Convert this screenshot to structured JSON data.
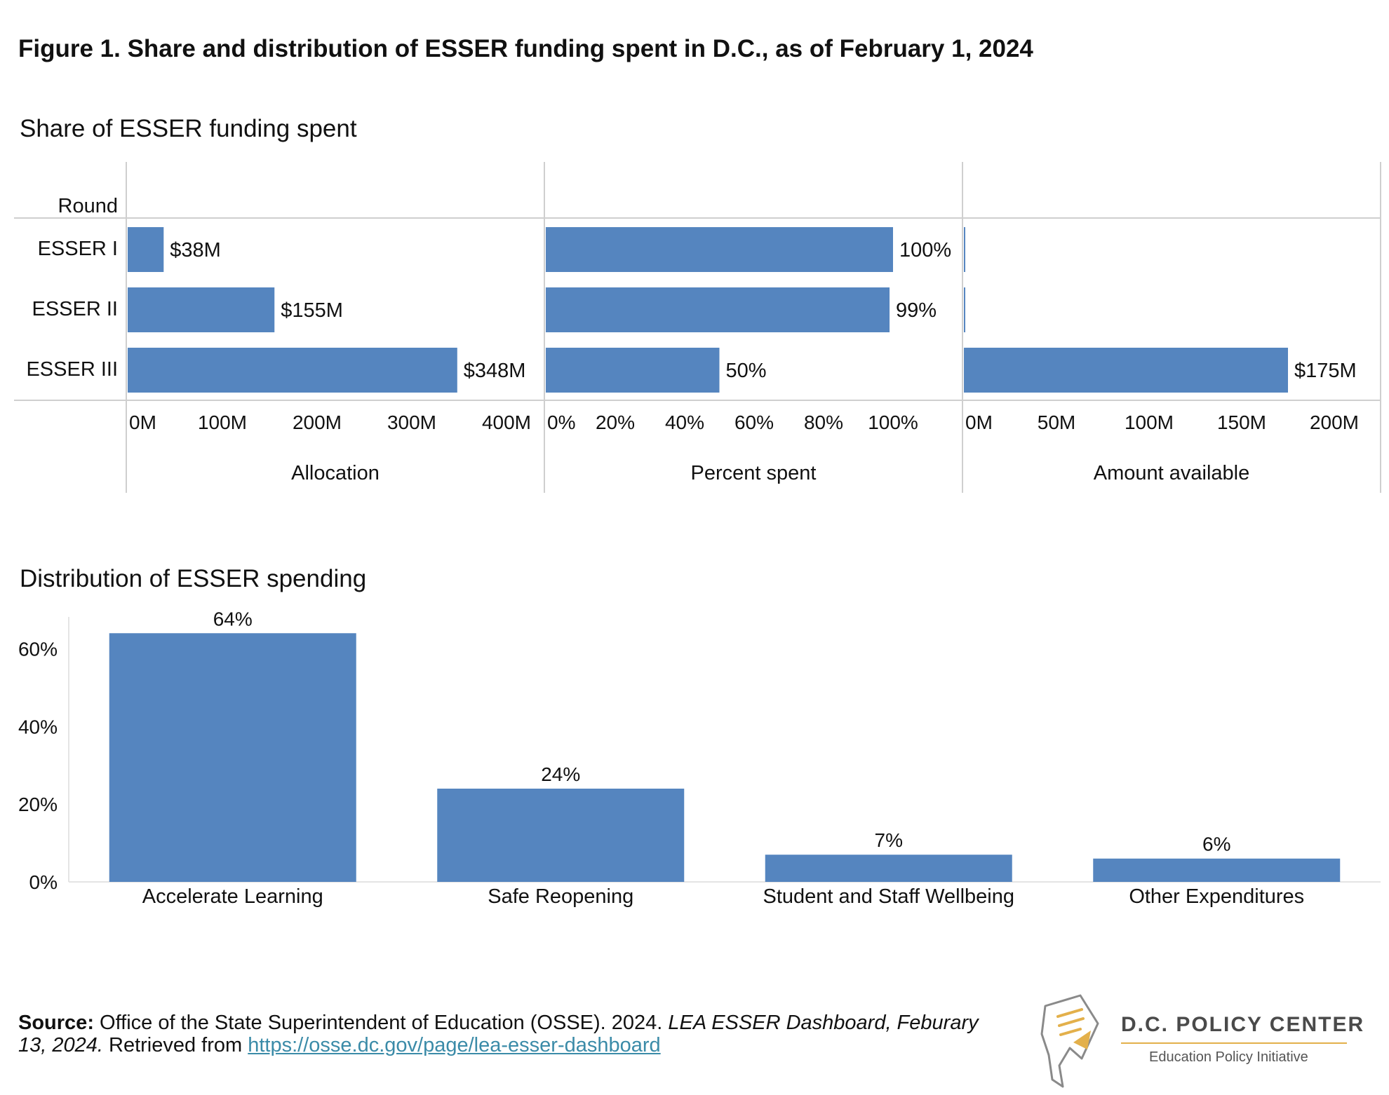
{
  "title": "Figure 1. Share and distribution of ESSER funding spent in D.C., as of February 1, 2024",
  "section1_title": "Share of ESSER funding spent",
  "section2_title": "Distribution of ESSER spending",
  "colors": {
    "bar": "#5585bf",
    "axis": "#cfcfcf",
    "text": "#111111",
    "link": "#3b8ba8",
    "logo_accent": "#e3b04b"
  },
  "chart_data": [
    {
      "type": "bar",
      "orientation": "horizontal",
      "row_header": "Round",
      "categories": [
        "ESSER I",
        "ESSER II",
        "ESSER III"
      ],
      "panels": [
        {
          "name": "Allocation",
          "values": [
            38,
            155,
            348
          ],
          "labels": [
            "$38M",
            "$155M",
            "$348M"
          ],
          "xlim": [
            0,
            440
          ],
          "ticks": [
            0,
            100,
            200,
            300,
            400
          ],
          "tick_labels": [
            "0M",
            "100M",
            "200M",
            "300M",
            "400M"
          ]
        },
        {
          "name": "Percent spent",
          "values": [
            100,
            99,
            50
          ],
          "labels": [
            "100%",
            "99%",
            "50%"
          ],
          "xlim": [
            0,
            120
          ],
          "ticks": [
            0,
            20,
            40,
            60,
            80,
            100
          ],
          "tick_labels": [
            "0%",
            "20%",
            "40%",
            "60%",
            "80%",
            "100%"
          ]
        },
        {
          "name": "Amount available",
          "values": [
            0.2,
            0.2,
            175
          ],
          "labels": [
            "",
            "",
            "$175M"
          ],
          "xlim": [
            0,
            225
          ],
          "ticks": [
            0,
            50,
            100,
            150,
            200
          ],
          "tick_labels": [
            "0M",
            "50M",
            "100M",
            "150M",
            "200M"
          ]
        }
      ]
    },
    {
      "type": "bar",
      "categories": [
        "Accelerate Learning",
        "Safe Reopening",
        "Student and Staff Wellbeing",
        "Other Expenditures"
      ],
      "values": [
        64,
        24,
        7,
        6
      ],
      "labels": [
        "64%",
        "24%",
        "7%",
        "6%"
      ],
      "ylim": [
        0,
        70
      ],
      "yticks": [
        0,
        20,
        40,
        60
      ],
      "ytick_labels": [
        "0%",
        "20%",
        "40%",
        "60%"
      ]
    }
  ],
  "source": {
    "label": "Source:",
    "text": " Office of the State Superintendent of Education (OSSE). 2024. ",
    "italic": "LEA ESSER Dashboard, Feburary 13, 2024.",
    "retrieved": " Retrieved from ",
    "link": "https://osse.dc.gov/page/lea-esser-dashboard"
  },
  "logo": {
    "name": "D.C. POLICY CENTER",
    "subtitle": "Education Policy Initiative"
  }
}
